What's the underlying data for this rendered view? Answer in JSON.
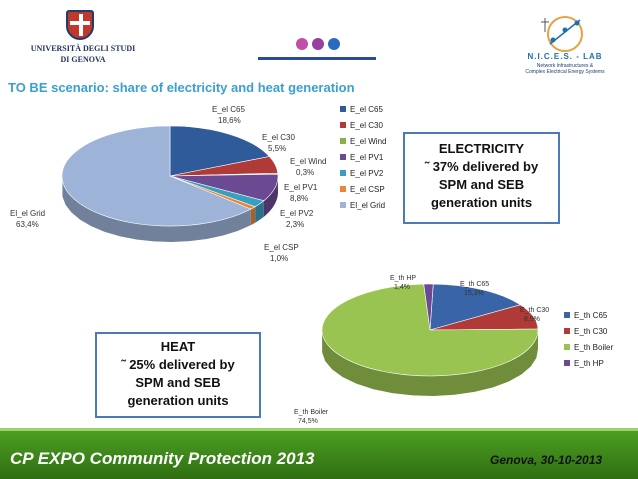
{
  "logos": {
    "university": {
      "line1": "UNIVERSITÀ DEGLI STUDI",
      "line2": "DI GENOVA"
    },
    "lab": {
      "title": "N.I.C.E.S. - LAB",
      "sub1": "Network Infrastructures &",
      "sub2": "Complex Electrical Energy Systems",
      "sub3": ""
    }
  },
  "colors": {
    "dot1": "#c04fa8",
    "dot2": "#9a3fa0",
    "dot3": "#2a6bc0"
  },
  "heading": "TO BE scenario: share of electricity and heat generation",
  "electricity_box": {
    "line1": "ELECTRICITY",
    "line2": "˜ 37% delivered by",
    "line3": "SPM and SEB",
    "line4": "generation units"
  },
  "heat_box": {
    "line1": "HEAT",
    "line2": "˜ 25% delivered by",
    "line3": "SPM and SEB",
    "line4": "generation units"
  },
  "chart_data": [
    {
      "type": "pie",
      "title": "",
      "slices": [
        {
          "name": "E_el C65",
          "label": "E_el C65",
          "value_label": "18,6%",
          "value": 18.6,
          "color": "#2f5b9b"
        },
        {
          "name": "E_el C30",
          "label": "E_el C30",
          "value_label": "5,5%",
          "value": 5.5,
          "color": "#b03a38"
        },
        {
          "name": "E_el Wind",
          "label": "E_el Wind",
          "value_label": "0,3%",
          "value": 0.3,
          "color": "#8bb04a"
        },
        {
          "name": "E_el PV1",
          "label": "E_el PV1",
          "value_label": "8,8%",
          "value": 8.8,
          "color": "#6b4a93"
        },
        {
          "name": "E_el PV2",
          "label": "E_el PV2",
          "value_label": "2,3%",
          "value": 2.3,
          "color": "#3a9ec0"
        },
        {
          "name": "E_el CSP",
          "label": "E_el CSP",
          "value_label": "1,0%",
          "value": 1.0,
          "color": "#e8873a"
        },
        {
          "name": "El_el Grid",
          "label": "El_el Grid",
          "value_label": "63,4%",
          "value": 63.4,
          "color": "#9db3d8"
        }
      ],
      "legend": [
        "E_el C65",
        "E_el C30",
        "E_el Wind",
        "E_el PV1",
        "E_el PV2",
        "E_el CSP",
        "El_el Grid"
      ]
    },
    {
      "type": "pie",
      "title": "",
      "slices": [
        {
          "name": "E_th C65",
          "label": "E_th C65",
          "value_label": "15,3%",
          "value": 15.3,
          "color": "#3a64a8"
        },
        {
          "name": "E_th C30",
          "label": "E_th C30",
          "value_label": "8,9%",
          "value": 8.9,
          "color": "#b03a38"
        },
        {
          "name": "E_th Boiler",
          "label": "E_th Boiler",
          "value_label": "74,5%",
          "value": 74.5,
          "color": "#9ac452"
        },
        {
          "name": "E_th HP",
          "label": "E_th HP",
          "value_label": "1,4%",
          "value": 1.4,
          "color": "#6b4a93"
        }
      ],
      "legend": [
        "E_th C65",
        "E_th C30",
        "E_th Boiler",
        "E_th HP"
      ]
    }
  ],
  "footer": {
    "left": "CP EXPO Community Protection 2013",
    "right": "Genova, 30-10-2013"
  }
}
